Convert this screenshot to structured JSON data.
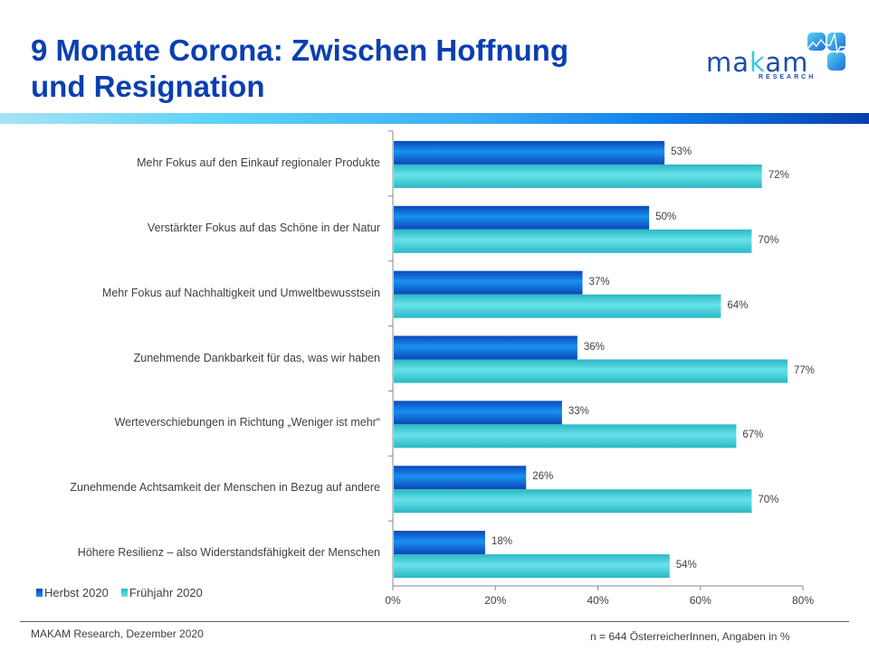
{
  "header": {
    "title_line1": "9 Monate Corona: Zwischen Hoffnung",
    "title_line2": "und Resignation",
    "logo": {
      "word_pre": "ma",
      "word_k": "k",
      "word_post": "am",
      "sub": "RESEARCH",
      "icon": "makam-pulse-logo-icon"
    }
  },
  "chart_data": {
    "type": "bar",
    "orientation": "horizontal",
    "title": "9 Monate Corona: Zwischen Hoffnung und Resignation",
    "xlabel": "",
    "ylabel": "",
    "xlim": [
      0,
      80
    ],
    "x_ticks": [
      "0%",
      "20%",
      "40%",
      "60%",
      "80%"
    ],
    "x_tick_values": [
      0,
      20,
      40,
      60,
      80
    ],
    "grid": false,
    "legend_position": "bottom-left",
    "categories": [
      "Mehr Fokus auf den Einkauf regionaler Produkte",
      "Verstärkter Fokus auf das Schöne in der Natur",
      "Mehr Fokus auf Nachhaltigkeit und Umweltbewusstsein",
      "Zunehmende Dankbarkeit für das, was wir haben",
      "Werteverschiebungen in Richtung „Weniger ist mehr“",
      "Zunehmende Achtsamkeit der Menschen in Bezug auf andere",
      "Höhere Resilienz – also Widerstandsfähigkeit der Menschen"
    ],
    "series": [
      {
        "name": "Herbst 2020",
        "color": "#1466d6",
        "values": [
          53,
          50,
          37,
          36,
          33,
          26,
          18
        ],
        "labels": [
          "53%",
          "50%",
          "37%",
          "36%",
          "33%",
          "26%",
          "18%"
        ]
      },
      {
        "name": "Frühjahr 2020",
        "color": "#4fd4de",
        "values": [
          72,
          70,
          64,
          77,
          67,
          70,
          54
        ],
        "labels": [
          "72%",
          "70%",
          "64%",
          "77%",
          "67%",
          "70%",
          "54%"
        ]
      }
    ]
  },
  "footer": {
    "source": "MAKAM Research,  Dezember 2020",
    "note": "n = 644 ÖsterreicherInnen,  Angaben in %"
  }
}
